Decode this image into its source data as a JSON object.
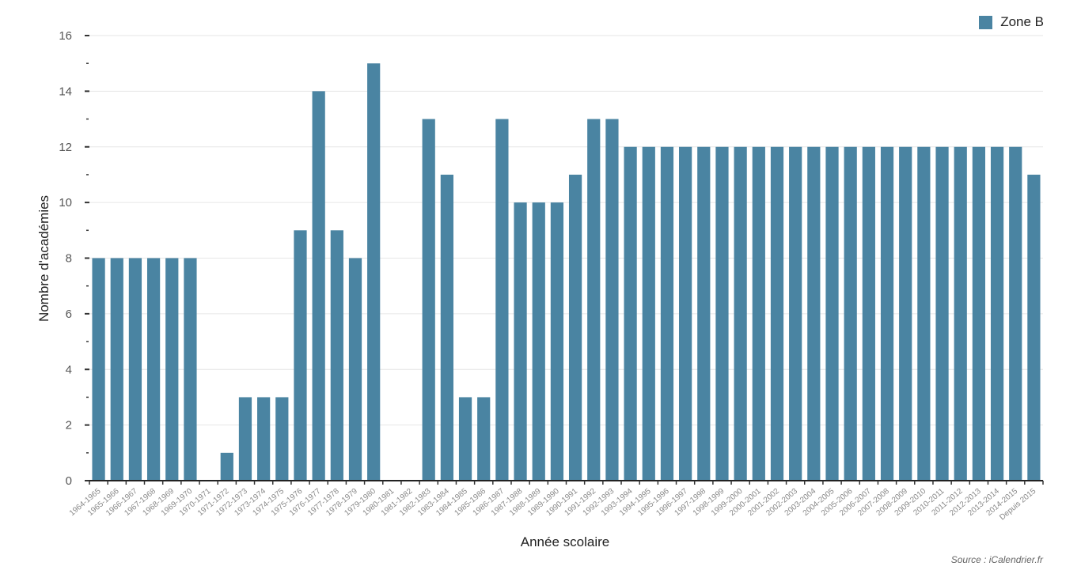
{
  "chart_data": {
    "type": "bar",
    "ylabel": "Nombre d'académies",
    "xlabel": "Année scolaire",
    "ylim": [
      0,
      16
    ],
    "yticks": [
      0,
      2,
      4,
      6,
      8,
      10,
      12,
      14,
      16
    ],
    "grid": true,
    "legend_position": "top-right",
    "bar_color": "#4a84a2",
    "categories": [
      "1964-1965",
      "1965-1966",
      "1966-1967",
      "1967-1968",
      "1968-1969",
      "1969-1970",
      "1970-1971",
      "1971-1972",
      "1972-1973",
      "1973-1974",
      "1974-1975",
      "1975-1976",
      "1976-1977",
      "1977-1978",
      "1978-1979",
      "1979-1980",
      "1980-1981",
      "1981-1982",
      "1982-1983",
      "1983-1984",
      "1984-1985",
      "1985-1986",
      "1986-1987",
      "1987-1988",
      "1988-1989",
      "1989-1990",
      "1990-1991",
      "1991-1992",
      "1992-1993",
      "1993-1994",
      "1994-1995",
      "1995-1996",
      "1996-1997",
      "1997-1998",
      "1998-1999",
      "1999-2000",
      "2000-2001",
      "2001-2002",
      "2002-2003",
      "2003-2004",
      "2004-2005",
      "2005-2006",
      "2006-2007",
      "2007-2008",
      "2008-2009",
      "2009-2010",
      "2010-2011",
      "2011-2012",
      "2012-2013",
      "2013-2014",
      "2014-2015",
      "Depuis 2015"
    ],
    "series": [
      {
        "name": "Zone B",
        "values": [
          8,
          8,
          8,
          8,
          8,
          8,
          0,
          1,
          3,
          3,
          3,
          9,
          14,
          9,
          8,
          15,
          0,
          0,
          13,
          11,
          3,
          3,
          13,
          10,
          10,
          10,
          11,
          13,
          13,
          12,
          12,
          12,
          12,
          12,
          12,
          12,
          12,
          12,
          12,
          12,
          12,
          12,
          12,
          12,
          12,
          12,
          12,
          12,
          12,
          12,
          12,
          11
        ]
      }
    ]
  },
  "legend": {
    "label": "Zone B"
  },
  "source": "Source : iCalendrier.fr"
}
